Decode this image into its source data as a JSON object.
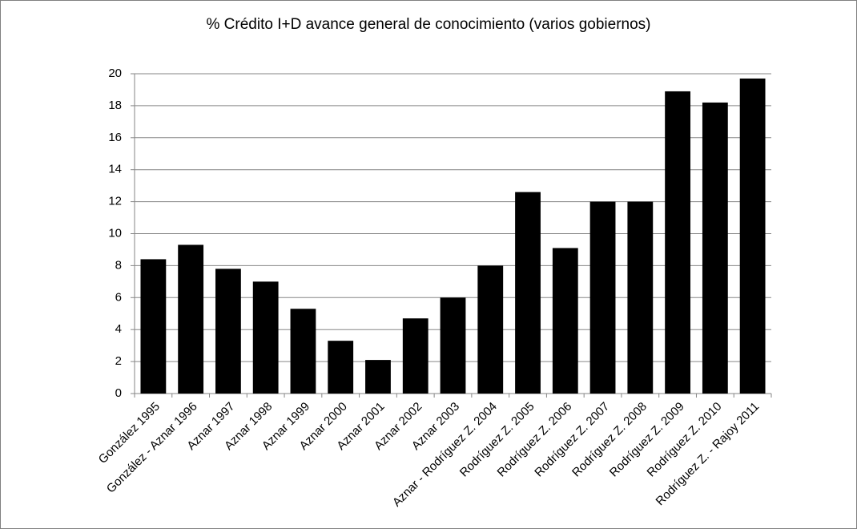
{
  "chart_data": {
    "type": "bar",
    "title": "% Crédito I+D avance general de conocimiento (varios gobiernos)",
    "categories": [
      "González 1995",
      "González - Aznar 1996",
      "Aznar 1997",
      "Aznar 1998",
      "Aznar 1999",
      "Aznar 2000",
      "Aznar 2001",
      "Aznar 2002",
      "Aznar 2003",
      "Aznar - Rodríguez Z. 2004",
      "Rodríguez Z. 2005",
      "Rodríguez Z. 2006",
      "Rodríguez Z. 2007",
      "Rodríguez Z. 2008",
      "Rodríguez Z. 2009",
      "Rodríguez Z. 2010",
      "Rodríguez Z. - Rajoy 2011"
    ],
    "values": [
      8.4,
      9.3,
      7.8,
      7.0,
      5.3,
      3.3,
      2.1,
      4.7,
      6.0,
      8.0,
      12.6,
      9.1,
      12.0,
      12.0,
      18.9,
      18.2,
      19.7
    ],
    "color": "#000000",
    "ylim": [
      0,
      20
    ],
    "yticks": [
      0,
      2,
      4,
      6,
      8,
      10,
      12,
      14,
      16,
      18,
      20
    ],
    "grid": true
  }
}
